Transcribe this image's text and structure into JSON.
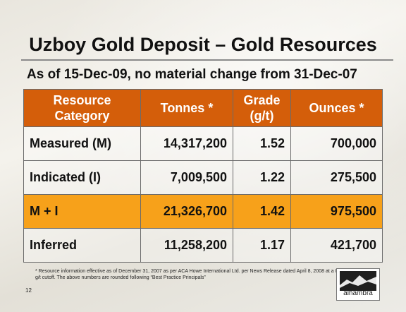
{
  "title": "Uzboy Gold Deposit – Gold Resources",
  "subtitle": "As of 15-Dec-09, no material change from 31-Dec-07",
  "table": {
    "headers": [
      "Resource Category",
      "Tonnes *",
      "Grade (g/t)",
      "Ounces *"
    ],
    "rows": [
      {
        "category": "Measured (M)",
        "tonnes": "14,317,200",
        "grade": "1.52",
        "ounces": "700,000"
      },
      {
        "category": "Indicated (I)",
        "tonnes": "7,009,500",
        "grade": "1.22",
        "ounces": "275,500"
      },
      {
        "category": "M + I",
        "tonnes": "21,326,700",
        "grade": "1.42",
        "ounces": "975,500"
      },
      {
        "category": "Inferred",
        "tonnes": "11,258,200",
        "grade": "1.17",
        "ounces": "421,700"
      }
    ]
  },
  "footnote": "* Resource information effective as of December 31, 2007 as per ACA Howe International Ltd. per News Release dated April 8, 2008 at a 0.40 g/t cutoff. The above numbers are rounded following “Best Practice Principals”",
  "page_number": "12",
  "logo": {
    "text": "alhambra",
    "icon": "mountain-logo-icon"
  },
  "colors": {
    "header": "#d45e0a",
    "highlight_row": "#f7a11a"
  }
}
